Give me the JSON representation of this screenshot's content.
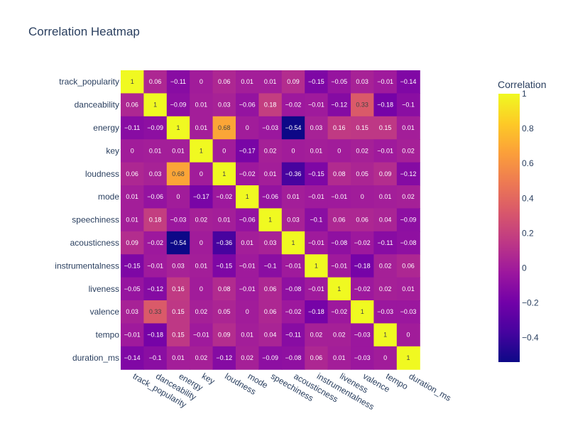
{
  "chart_data": {
    "type": "heatmap",
    "title": "Correlation Heatmap",
    "x_labels": [
      "track_popularity",
      "danceability",
      "energy",
      "key",
      "loudness",
      "mode",
      "speechiness",
      "acousticness",
      "instrumentalness",
      "liveness",
      "valence",
      "tempo",
      "duration_ms"
    ],
    "y_labels": [
      "track_popularity",
      "danceability",
      "energy",
      "key",
      "loudness",
      "mode",
      "speechiness",
      "acousticness",
      "instrumentalness",
      "liveness",
      "valence",
      "tempo",
      "duration_ms"
    ],
    "z": [
      [
        1,
        0.06,
        -0.11,
        0,
        0.06,
        0.01,
        0.01,
        0.09,
        -0.15,
        -0.05,
        0.03,
        -0.01,
        -0.14
      ],
      [
        0.06,
        1,
        -0.09,
        0.01,
        0.03,
        -0.06,
        0.18,
        -0.02,
        -0.01,
        -0.12,
        0.33,
        -0.18,
        -0.1
      ],
      [
        -0.11,
        -0.09,
        1,
        0.01,
        0.68,
        0,
        -0.03,
        -0.54,
        0.03,
        0.16,
        0.15,
        0.15,
        0.01
      ],
      [
        0,
        0.01,
        0.01,
        1,
        0,
        -0.17,
        0.02,
        0,
        0.01,
        0,
        0.02,
        -0.01,
        0.02
      ],
      [
        0.06,
        0.03,
        0.68,
        0,
        1,
        -0.02,
        0.01,
        -0.36,
        -0.15,
        0.08,
        0.05,
        0.09,
        -0.12
      ],
      [
        0.01,
        -0.06,
        0,
        -0.17,
        -0.02,
        1,
        -0.06,
        0.01,
        -0.01,
        -0.01,
        0,
        0.01,
        0.02
      ],
      [
        0.01,
        0.18,
        -0.03,
        0.02,
        0.01,
        -0.06,
        1,
        0.03,
        -0.1,
        0.06,
        0.06,
        0.04,
        -0.09
      ],
      [
        0.09,
        -0.02,
        -0.54,
        0,
        -0.36,
        0.01,
        0.03,
        1,
        -0.01,
        -0.08,
        -0.02,
        -0.11,
        -0.08
      ],
      [
        -0.15,
        -0.01,
        0.03,
        0.01,
        -0.15,
        -0.01,
        -0.1,
        -0.01,
        1,
        -0.01,
        -0.18,
        0.02,
        0.06
      ],
      [
        -0.05,
        -0.12,
        0.16,
        0,
        0.08,
        -0.01,
        0.06,
        -0.08,
        -0.01,
        1,
        -0.02,
        0.02,
        0.01
      ],
      [
        0.03,
        0.33,
        0.15,
        0.02,
        0.05,
        0,
        0.06,
        -0.02,
        -0.18,
        -0.02,
        1,
        -0.03,
        -0.03
      ],
      [
        -0.01,
        -0.18,
        0.15,
        -0.01,
        0.09,
        0.01,
        0.04,
        -0.11,
        0.02,
        0.02,
        -0.03,
        1,
        0
      ],
      [
        -0.14,
        -0.1,
        0.01,
        0.02,
        -0.12,
        0.02,
        -0.09,
        -0.08,
        0.06,
        0.01,
        -0.03,
        0,
        1
      ]
    ],
    "zmin": -0.54,
    "zmax": 1,
    "colorscale": "plasma",
    "colorbar": {
      "title": "Correlation",
      "ticks": [
        1,
        0.8,
        0.6,
        0.4,
        0.2,
        0,
        -0.2,
        -0.4
      ],
      "tick_labels": [
        "1",
        "0.8",
        "0.6",
        "0.4",
        "0.2",
        "0",
        "−0.2",
        "−0.4"
      ]
    }
  }
}
